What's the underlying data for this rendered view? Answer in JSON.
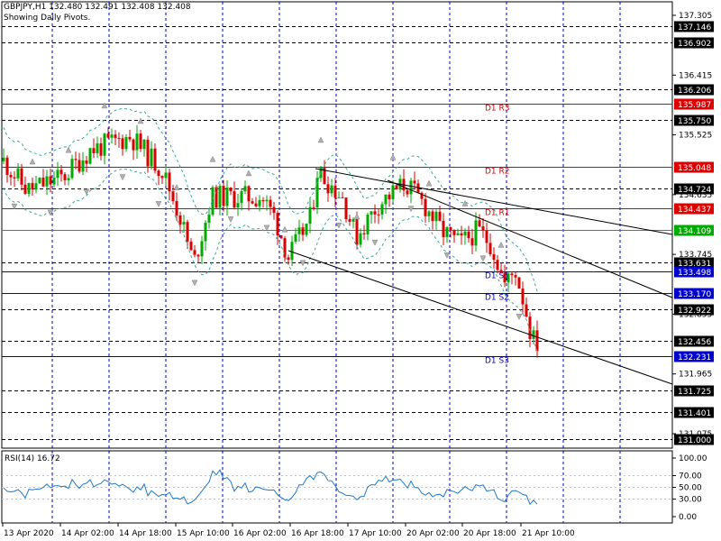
{
  "header": {
    "symbol_line": "GBPJPY,H1  132.480 132.491 132.408 132.408",
    "subtitle": "Showing Daily Pivots."
  },
  "rsi": {
    "label": "RSI(14) 16.72",
    "levels": [
      "100.00",
      "70.00",
      "50.00",
      "30.00",
      "0.00"
    ]
  },
  "price_axis": {
    "ticks": [
      "137.305",
      "136.415",
      "135.525",
      "134.635",
      "133.745",
      "132.855",
      "131.965",
      "131.075"
    ]
  },
  "hlines": [
    {
      "value": "137.146",
      "style": "dash",
      "color": "#000000",
      "tag_bg": "#000000"
    },
    {
      "value": "136.902",
      "style": "dash",
      "color": "#000000",
      "tag_bg": "#000000"
    },
    {
      "value": "136.206",
      "style": "dash",
      "color": "#000000",
      "tag_bg": "#000000"
    },
    {
      "value": "135.987",
      "style": "solid",
      "color": "#dd0000",
      "tag_bg": "#dd0000",
      "label": "D1 R3"
    },
    {
      "value": "135.750",
      "style": "dash",
      "color": "#000000",
      "tag_bg": "#000000"
    },
    {
      "value": "135.048",
      "style": "solid",
      "color": "#dd0000",
      "tag_bg": "#dd0000",
      "label": "D1 R2"
    },
    {
      "value": "134.724",
      "style": "dash",
      "color": "#000000",
      "tag_bg": "#000000"
    },
    {
      "value": "134.437",
      "style": "solid",
      "color": "#dd0000",
      "tag_bg": "#dd0000",
      "label": "D1 R1"
    },
    {
      "value": "134.109",
      "style": "solid",
      "color": "#00bb00",
      "tag_bg": "#00aa00"
    },
    {
      "value": "133.631",
      "style": "dash",
      "color": "#000000",
      "tag_bg": "#000000"
    },
    {
      "value": "133.498",
      "style": "solid",
      "color": "#0000cc",
      "tag_bg": "#0000cc",
      "label": "D1 S1"
    },
    {
      "value": "133.170",
      "style": "solid",
      "color": "#0000cc",
      "tag_bg": "#0000cc",
      "label": "D1 S2"
    },
    {
      "value": "132.922",
      "style": "dash",
      "color": "#000000",
      "tag_bg": "#000000"
    },
    {
      "value": "132.456",
      "style": "dash",
      "color": "#000000",
      "tag_bg": "#000000"
    },
    {
      "value": "132.231",
      "style": "solid",
      "color": "#0000cc",
      "tag_bg": "#0000cc",
      "label": "D1 S3"
    },
    {
      "value": "131.725",
      "style": "dash",
      "color": "#000000",
      "tag_bg": "#000000"
    },
    {
      "value": "131.401",
      "style": "dash",
      "color": "#000000",
      "tag_bg": "#000000"
    },
    {
      "value": "131.000",
      "style": "dash",
      "color": "#000000",
      "tag_bg": "#000000"
    }
  ],
  "time_axis": {
    "labels": [
      "13 Apr 2020",
      "14 Apr 02:00",
      "14 Apr 18:00",
      "15 Apr 10:00",
      "16 Apr 02:00",
      "16 Apr 18:00",
      "17 Apr 10:00",
      "20 Apr 02:00",
      "20 Apr 18:00",
      "21 Apr 10:00"
    ]
  },
  "colors": {
    "bull": "#00aa00",
    "bear": "#dd0000",
    "grid": "#0000aa",
    "trendline": "#000000",
    "envelope": "#3aa89a",
    "rsi_line": "#1e78c8"
  }
}
